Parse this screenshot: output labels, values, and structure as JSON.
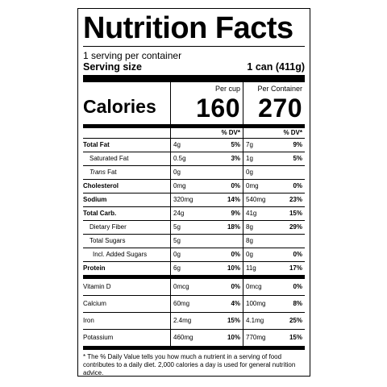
{
  "label": {
    "title": "Nutrition Facts",
    "servings_per_container": "1 serving per container",
    "serving_size_label": "Serving size",
    "serving_size_value": "1 can (411g)",
    "calories_label": "Calories",
    "col1_header": "Per cup",
    "col2_header": "Per Container",
    "calories_col1": "160",
    "calories_col2": "270",
    "dv_header": "% DV*",
    "nutrients": [
      {
        "name": "Total Fat",
        "amt1": "4g",
        "dv1": "5%",
        "amt2": "7g",
        "dv2": "9%"
      },
      {
        "name": "Saturated Fat",
        "amt1": "0.5g",
        "dv1": "3%",
        "amt2": "1g",
        "dv2": "5%"
      },
      {
        "name_prefix": "Trans",
        "name": " Fat",
        "amt1": "0g",
        "dv1": "",
        "amt2": "0g",
        "dv2": ""
      },
      {
        "name": "Cholesterol",
        "amt1": "0mg",
        "dv1": "0%",
        "amt2": "0mg",
        "dv2": "0%"
      },
      {
        "name": "Sodium",
        "amt1": "320mg",
        "dv1": "14%",
        "amt2": "540mg",
        "dv2": "23%"
      },
      {
        "name": "Total Carb.",
        "amt1": "24g",
        "dv1": "9%",
        "amt2": "41g",
        "dv2": "15%"
      },
      {
        "name": "Dietary Fiber",
        "amt1": "5g",
        "dv1": "18%",
        "amt2": "8g",
        "dv2": "29%"
      },
      {
        "name": "Total Sugars",
        "amt1": "5g",
        "dv1": "",
        "amt2": "8g",
        "dv2": ""
      },
      {
        "name": "Incl. Added Sugars",
        "amt1": "0g",
        "dv1": "0%",
        "amt2": "0g",
        "dv2": "0%"
      },
      {
        "name": "Protein",
        "amt1": "6g",
        "dv1": "10%",
        "amt2": "11g",
        "dv2": "17%"
      }
    ],
    "micros": [
      {
        "name": "Vitamin D",
        "amt1": "0mcg",
        "dv1": "0%",
        "amt2": "0mcg",
        "dv2": "0%"
      },
      {
        "name": "Calcium",
        "amt1": "60mg",
        "dv1": "4%",
        "amt2": "100mg",
        "dv2": "8%"
      },
      {
        "name": "Iron",
        "amt1": "2.4mg",
        "dv1": "15%",
        "amt2": "4.1mg",
        "dv2": "25%"
      },
      {
        "name": "Potassium",
        "amt1": "460mg",
        "dv1": "10%",
        "amt2": "770mg",
        "dv2": "15%"
      }
    ],
    "footnote": "* The % Daily Value tells you how much a nutrient in a serving of food contributes to a daily diet. 2,000 calories a day is used for general nutrition advice."
  }
}
